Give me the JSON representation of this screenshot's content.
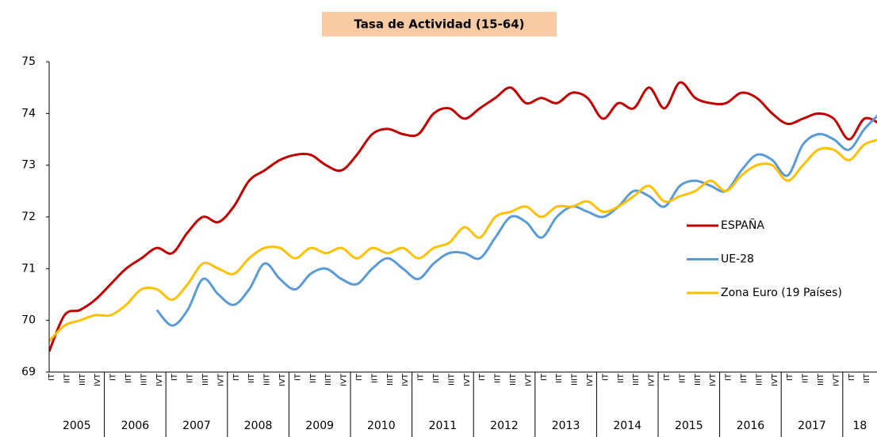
{
  "chart_data": {
    "type": "line",
    "title": "Tasa de Actividad (15-64)",
    "categories": [
      "IT",
      "IIT",
      "IIIT",
      "IVT",
      "IT",
      "IIT",
      "IIIT",
      "IVT",
      "IT",
      "IIT",
      "IIIT",
      "IVT",
      "IT",
      "IIT",
      "IIIT",
      "IVT",
      "IT",
      "IIT",
      "IIIT",
      "IVT",
      "IT",
      "IIT",
      "IIIT",
      "IVT",
      "IT",
      "IIT",
      "IIIT",
      "IVT",
      "IT",
      "IIT",
      "IIIT",
      "IVT",
      "IT",
      "IIT",
      "IIIT",
      "IVT",
      "IT",
      "IIT",
      "IIIT",
      "IVT",
      "IT",
      "IIT",
      "IIIT",
      "IVT",
      "IT",
      "IIT",
      "IIIT",
      "IVT",
      "IT",
      "IIT",
      "IIIT",
      "IVT",
      "IT",
      "IIT",
      "IIIT"
    ],
    "years": [
      "2005",
      "2006",
      "2007",
      "2008",
      "2009",
      "2010",
      "2011",
      "2012",
      "2013",
      "2014",
      "2015",
      "2016",
      "2017",
      "18"
    ],
    "series": [
      {
        "name": "ESPAÑA",
        "color": "#c00000",
        "values": [
          69.4,
          70.1,
          70.2,
          70.4,
          70.7,
          71.0,
          71.2,
          71.4,
          71.3,
          71.7,
          72.0,
          71.9,
          72.2,
          72.7,
          72.9,
          73.1,
          73.2,
          73.2,
          73.0,
          72.9,
          73.2,
          73.6,
          73.7,
          73.6,
          73.6,
          74.0,
          74.1,
          73.9,
          74.1,
          74.3,
          74.5,
          74.2,
          74.3,
          74.2,
          74.4,
          74.3,
          73.9,
          74.2,
          74.1,
          74.5,
          74.1,
          74.6,
          74.3,
          74.2,
          74.2,
          74.4,
          74.3,
          74.0,
          73.8,
          73.9,
          74.0,
          73.9,
          73.5,
          73.9,
          73.8
        ]
      },
      {
        "name": "UE-28",
        "color": "#5b9bd5",
        "values": [
          null,
          null,
          null,
          null,
          null,
          null,
          null,
          70.2,
          69.9,
          70.2,
          70.8,
          70.5,
          70.3,
          70.6,
          71.1,
          70.8,
          70.6,
          70.9,
          71.0,
          70.8,
          70.7,
          71.0,
          71.2,
          71.0,
          70.8,
          71.1,
          71.3,
          71.3,
          71.2,
          71.6,
          72.0,
          71.9,
          71.6,
          72.0,
          72.2,
          72.1,
          72.0,
          72.2,
          72.5,
          72.4,
          72.2,
          72.6,
          72.7,
          72.6,
          72.5,
          72.9,
          73.2,
          73.1,
          72.8,
          73.4,
          73.6,
          73.5,
          73.3,
          73.7,
          74.0
        ]
      },
      {
        "name": "Zona Euro (19 Países)",
        "color": "#ffc000",
        "values": [
          69.6,
          69.9,
          70.0,
          70.1,
          70.1,
          70.3,
          70.6,
          70.6,
          70.4,
          70.7,
          71.1,
          71.0,
          70.9,
          71.2,
          71.4,
          71.4,
          71.2,
          71.4,
          71.3,
          71.4,
          71.2,
          71.4,
          71.3,
          71.4,
          71.2,
          71.4,
          71.5,
          71.8,
          71.6,
          72.0,
          72.1,
          72.2,
          72.0,
          72.2,
          72.2,
          72.3,
          72.1,
          72.2,
          72.4,
          72.6,
          72.3,
          72.4,
          72.5,
          72.7,
          72.5,
          72.8,
          73.0,
          73.0,
          72.7,
          73.0,
          73.3,
          73.3,
          73.1,
          73.4,
          73.5
        ]
      }
    ],
    "ylim": [
      69,
      75
    ],
    "yticks": [
      69,
      70,
      71,
      72,
      73,
      74,
      75
    ],
    "grid": false,
    "legend": "right"
  }
}
